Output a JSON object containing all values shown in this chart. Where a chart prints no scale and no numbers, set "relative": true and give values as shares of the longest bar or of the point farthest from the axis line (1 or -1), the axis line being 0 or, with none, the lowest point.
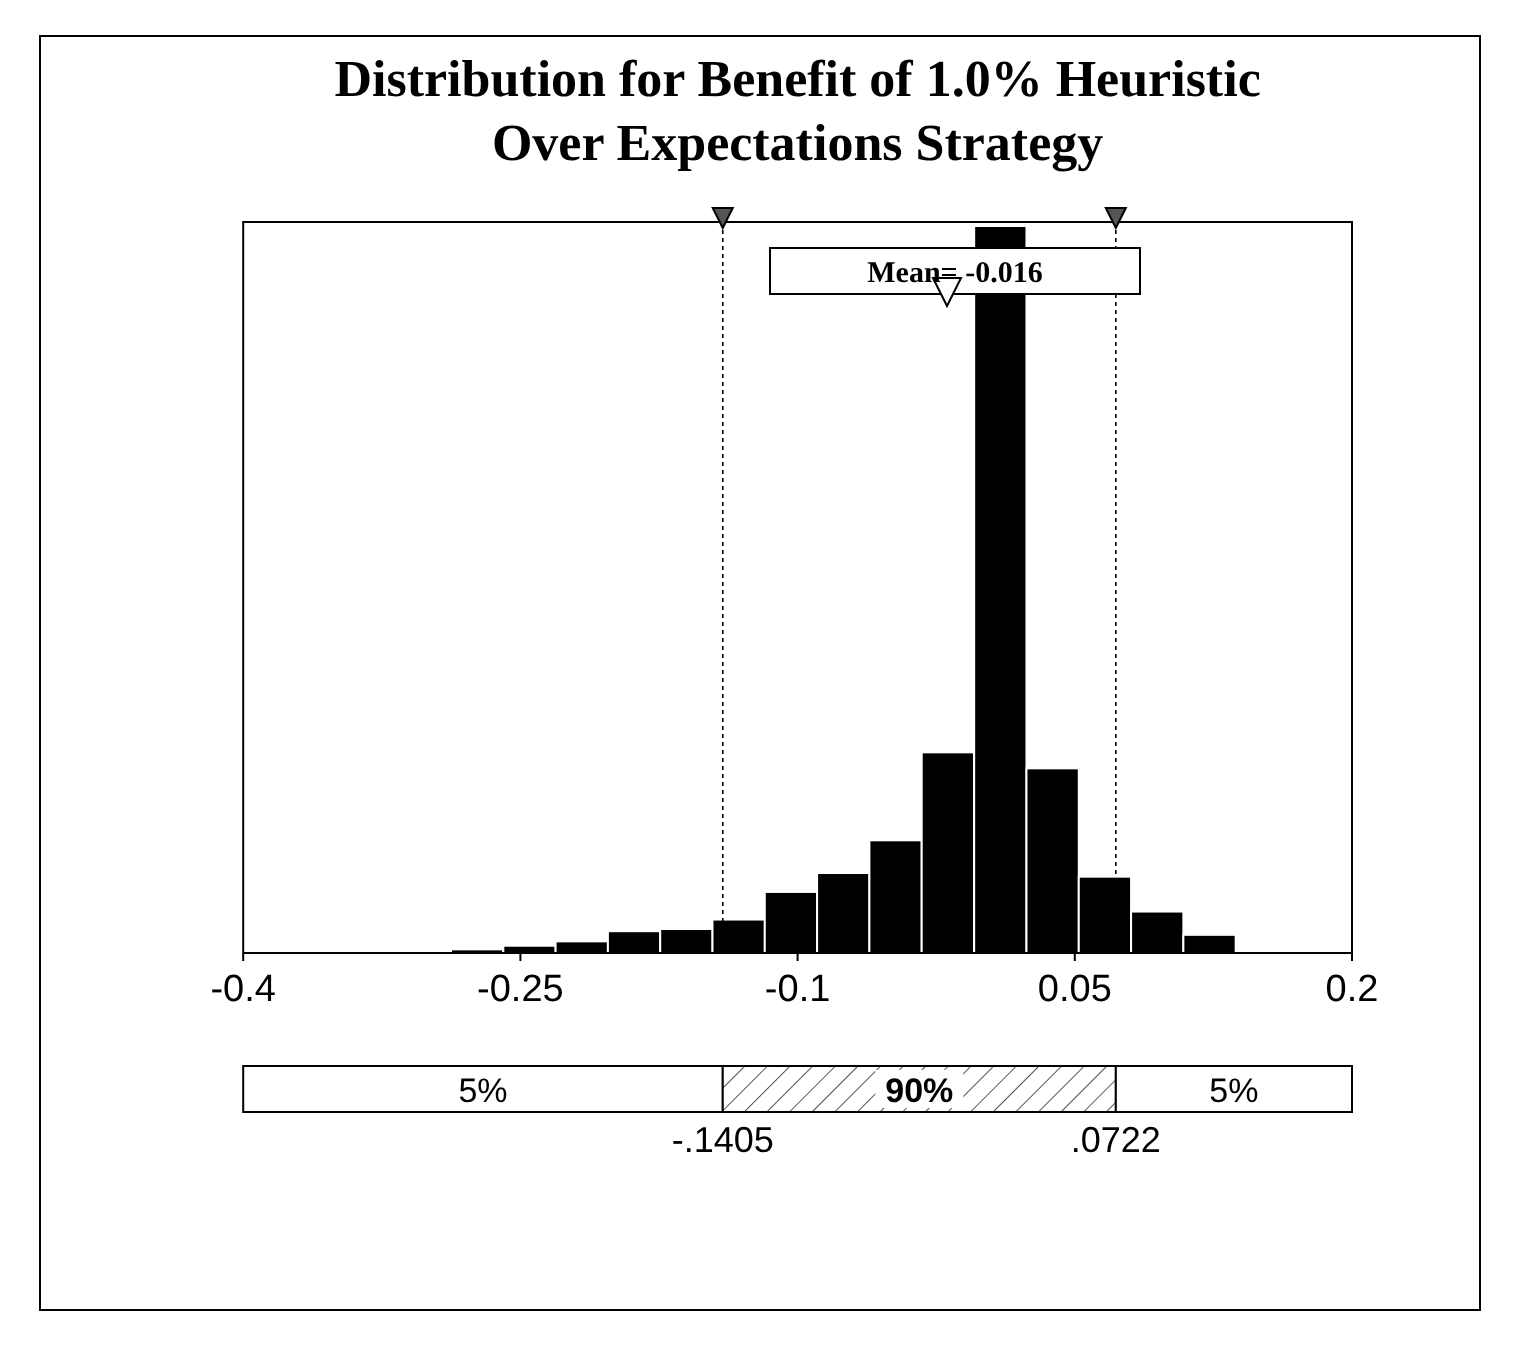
{
  "chart_data": {
    "type": "bar",
    "title": "Distribution for Benefit of 1.0% Heuristic Over Expectations Strategy",
    "relative": true,
    "color": "#000000",
    "x": [
      -0.2734,
      -0.2451,
      -0.2168,
      -0.1885,
      -0.1602,
      -0.1319,
      -0.1036,
      -0.0753,
      -0.047,
      -0.0187,
      0.0097,
      0.038,
      0.0663,
      0.0946,
      0.1229
    ],
    "values": [
      0.005,
      0.01,
      0.016,
      0.03,
      0.033,
      0.046,
      0.084,
      0.11,
      0.155,
      0.276,
      1,
      0.254,
      0.105,
      0.057,
      0.025
    ],
    "xlim": [
      -0.4,
      0.2
    ],
    "xticks": [
      -0.4,
      -0.25,
      -0.1,
      0.05,
      0.2
    ],
    "tick_labels": "x",
    "ref_lines": [
      {
        "axis": "x",
        "value": -0.1405,
        "line_style": "dotted"
      },
      {
        "axis": "x",
        "value": 0.0722,
        "line_style": "dotted"
      }
    ],
    "annotations": [
      "Mean= -0.016",
      "5%",
      "90%",
      "5%",
      "-.1405",
      ".0722"
    ]
  }
}
